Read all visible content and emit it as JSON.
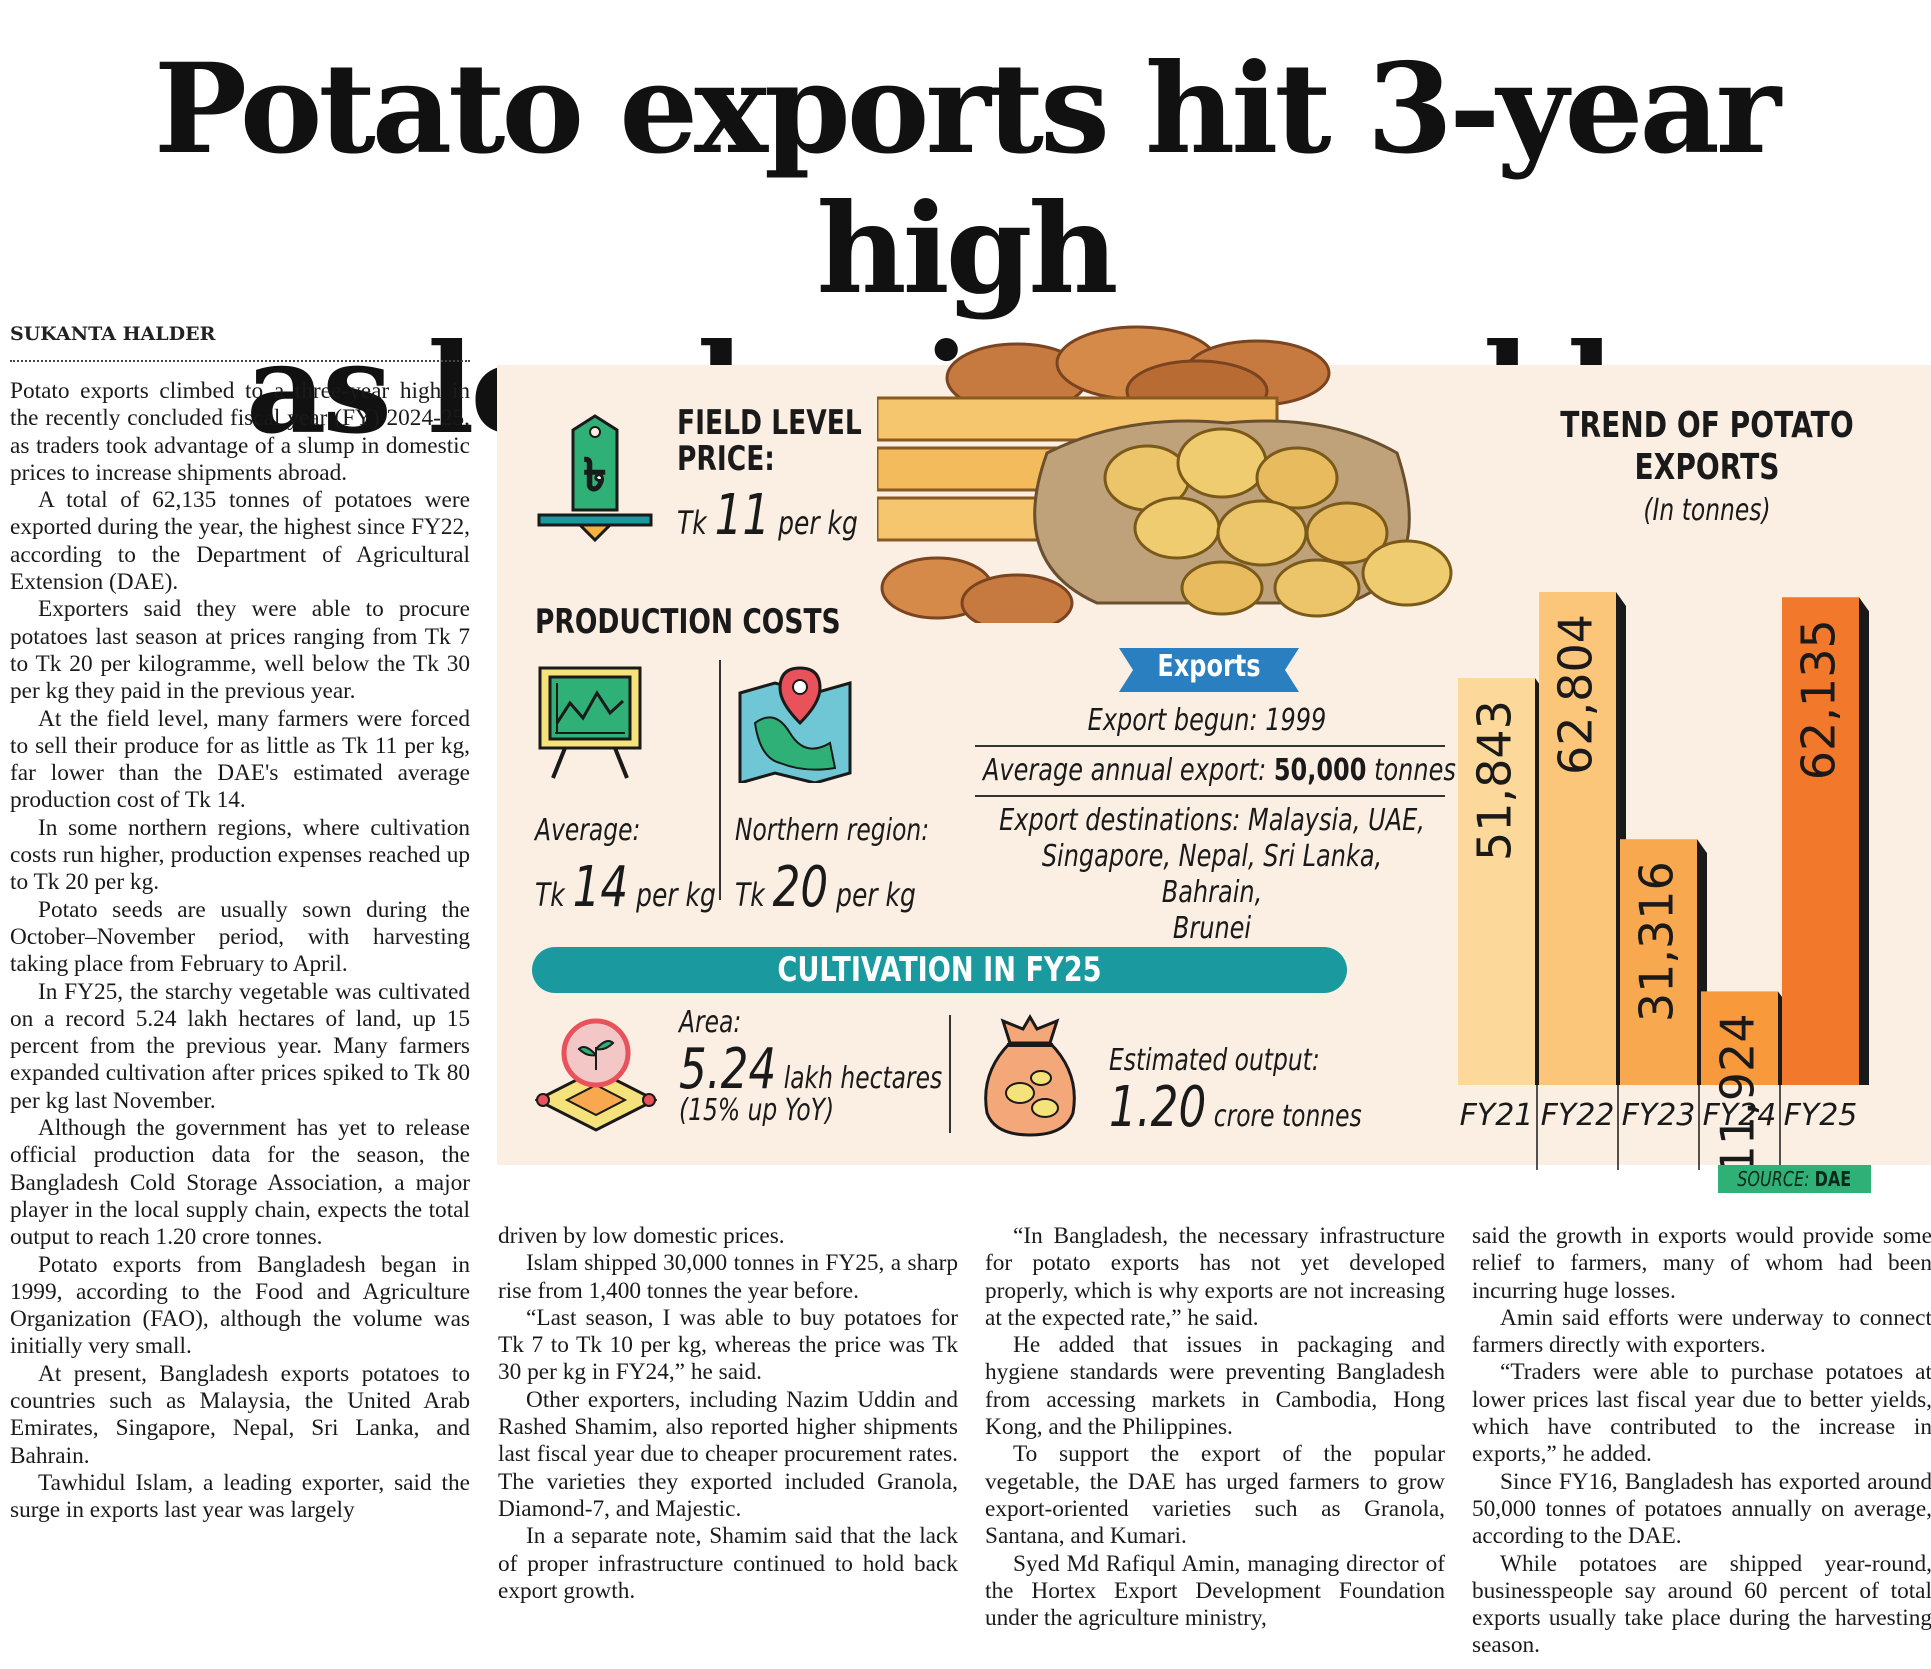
{
  "headline": {
    "line1": "Potato exports hit 3-year high",
    "line2": "as local prices tumble"
  },
  "byline": "SUKANTA HALDER",
  "infographic": {
    "field_level": {
      "title_line1": "FIELD LEVEL",
      "title_line2": "PRICE:",
      "prefix": "Tk",
      "value": "11",
      "unit": "per kg",
      "icon": "taka-price-tag-icon"
    },
    "production_costs": {
      "title": "PRODUCTION COSTS",
      "average": {
        "label": "Average:",
        "prefix": "Tk",
        "value": "14",
        "unit": "per kg",
        "icon": "chart-board-icon"
      },
      "northern": {
        "label": "Northern region:",
        "prefix": "Tk",
        "value": "20",
        "unit": "per kg",
        "icon": "map-pin-icon"
      }
    },
    "exports": {
      "tag": "Exports",
      "begun": "Export begun: 1999",
      "avg_prefix": "Average annual export:",
      "avg_value": "50,000",
      "avg_unit": "tonnes",
      "destinations_line1": "Export destinations: Malaysia, UAE,",
      "destinations_line2": "Singapore, Nepal, Sri Lanka, Bahrain,",
      "destinations_line3": "Brunei"
    },
    "cultivation": {
      "title": "CULTIVATION IN FY25",
      "area_label": "Area:",
      "area_value": "5.24",
      "area_unit": "lakh hectares",
      "area_change": "(15% up YoY)",
      "output_label": "Estimated output:",
      "output_value": "1.20",
      "output_unit": "crore tonnes"
    },
    "source_label": "SOURCE:",
    "source_value": "DAE",
    "colors": {
      "box_bg": "#fbefe3",
      "teal": "#1a9a9f",
      "tag_blue": "#2a7fc1",
      "source_green": "#2fb077"
    }
  },
  "chart_data": {
    "type": "bar",
    "title_line1": "TREND OF POTATO",
    "title_line2": "EXPORTS",
    "unit": "(In tonnes)",
    "categories": [
      "FY21",
      "FY22",
      "FY23",
      "FY24",
      "FY25"
    ],
    "values": [
      51843,
      62804,
      31316,
      11924,
      62135
    ],
    "labels": [
      "51,843",
      "62,804",
      "31,316",
      "11,924",
      "62,135"
    ],
    "colors": [
      "#fcd99a",
      "#fbc57a",
      "#f8a84e",
      "#f89a3c",
      "#f2782c"
    ]
  },
  "article": {
    "col1": [
      "Potato exports climbed to a three-year high in the recently concluded fiscal year (FY) 2024-25, as traders took advantage of a slump in domestic prices to increase shipments abroad.",
      "A total of 62,135 tonnes of potatoes were exported during the year, the highest since FY22, according to the Department of Agricultural Extension (DAE).",
      "Exporters said they were able to procure potatoes last season at prices ranging from Tk 7 to Tk 20 per kilogramme, well below the Tk 30 per kg they paid in the previous year.",
      "At the field level, many farmers were forced to sell their produce for as little as Tk 11 per kg, far lower than the DAE's estimated average production cost of Tk 14.",
      "In some northern regions, where cultivation costs run higher, production expenses reached up to Tk 20 per kg.",
      "Potato seeds are usually sown during the October–November period, with harvesting taking place from February to April.",
      "In FY25, the starchy vegetable was cultivated on a record 5.24 lakh hectares of land, up 15 percent from the previous year. Many farmers expanded cultivation after prices spiked to Tk 80 per kg last November.",
      "Although the government has yet to release official production data for the season, the Bangladesh Cold Storage Association, a major player in the local supply chain, expects the total output to reach 1.20 crore tonnes.",
      "Potato exports from Bangladesh began in 1999, according to the Food and Agriculture Organization (FAO), although the volume was initially very small.",
      "At present, Bangladesh exports potatoes to countries such as Malaysia, the United Arab Emirates, Singapore, Nepal, Sri Lanka, and Bahrain.",
      "Tawhidul Islam, a leading exporter, said the surge in exports last year was largely"
    ],
    "col2": [
      "driven by low domestic prices.",
      "Islam shipped 30,000 tonnes in FY25, a sharp rise from 1,400 tonnes the year before.",
      "“Last season, I was able to buy potatoes for Tk 7 to Tk 10 per kg, whereas the price was Tk 30 per kg in FY24,” he said.",
      "Other exporters, including Nazim Uddin and Rashed Shamim, also reported higher shipments last fiscal year due to cheaper procurement rates. The varieties they exported included Granola, Diamond-7, and Majestic.",
      "In a separate note, Shamim said that the lack of proper infrastructure continued to hold back export growth."
    ],
    "col3": [
      "“In Bangladesh, the necessary infrastructure for potato exports has not yet developed properly, which is why exports are not increasing at the expected rate,” he said.",
      "He added that issues in packaging and hygiene standards were preventing Bangladesh from accessing markets in Cambodia, Hong Kong, and the Philippines.",
      "To support the export of the popular vegetable, the DAE has urged farmers to grow export-oriented varieties such as Granola, Santana, and Kumari.",
      "Syed Md Rafiqul Amin, managing director of the Hortex Export Development Foundation under the agriculture ministry,"
    ],
    "col4": [
      "said the growth in exports would provide some relief to farmers, many of whom had been incurring huge losses.",
      "Amin said efforts were underway to connect farmers directly with exporters.",
      "“Traders were able to purchase potatoes at lower prices last fiscal year due to better yields, which have contributed to the increase in exports,” he added.",
      "Since FY16, Bangladesh has exported around 50,000 tonnes of potatoes annually on average, according to the DAE.",
      "While potatoes are shipped year-round, businesspeople say around 60 percent of total exports usually take place during the harvesting season."
    ]
  }
}
